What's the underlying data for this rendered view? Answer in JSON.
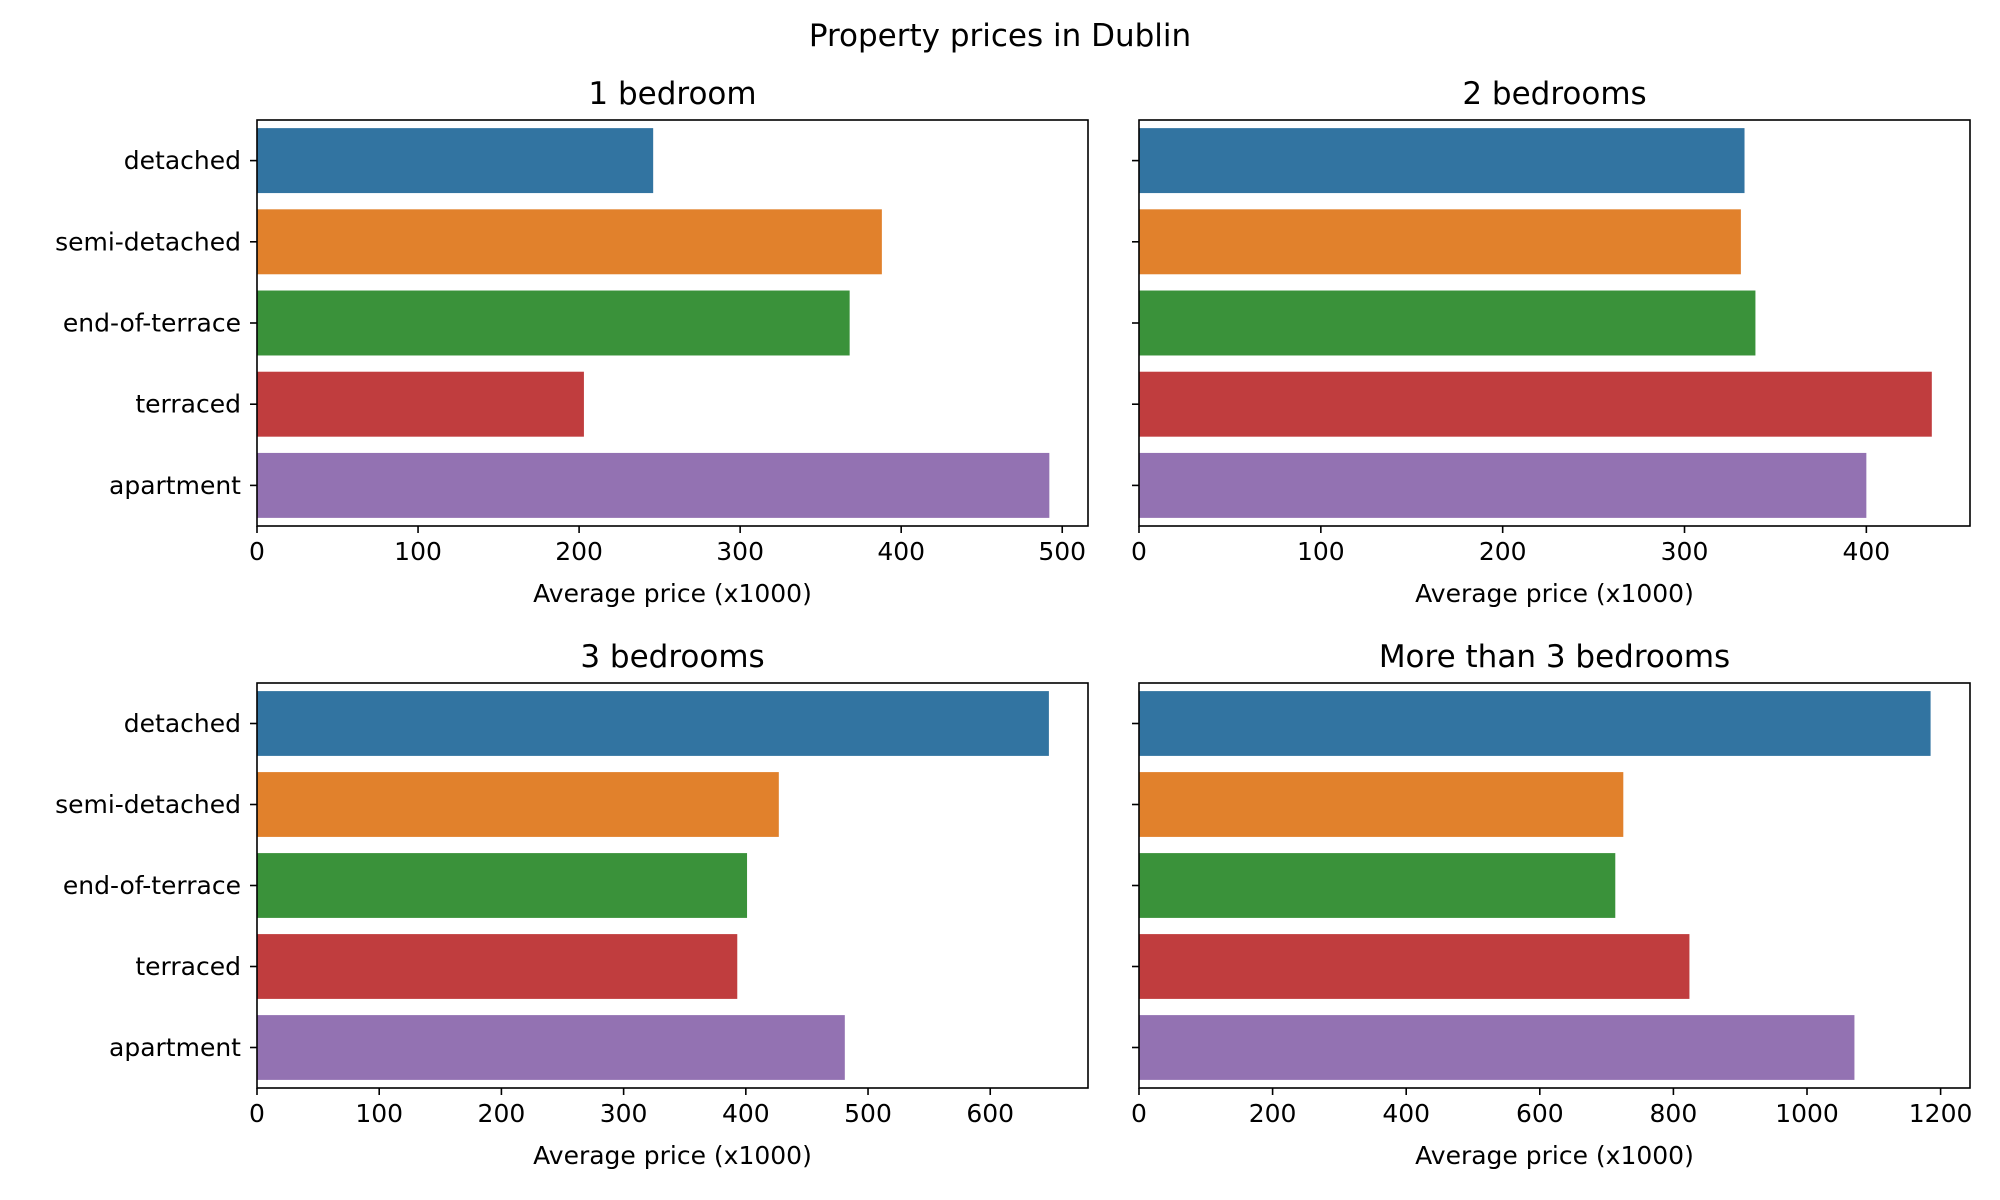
{
  "figure": {
    "title": "Property prices in Dublin"
  },
  "category_axis": [
    "detached",
    "semi-detached",
    "end-of-terrace",
    "terraced",
    "apartment"
  ],
  "colors": [
    "#3274a1",
    "#e1812c",
    "#3a923a",
    "#c03d3e",
    "#9372b2"
  ],
  "chart_data": [
    {
      "type": "bar",
      "orientation": "horizontal",
      "title": "1 bedroom",
      "categories": [
        "detached",
        "semi-detached",
        "end-of-terrace",
        "terraced",
        "apartment"
      ],
      "values": [
        246,
        388,
        368,
        203,
        492
      ],
      "xlabel": "Average price (x1000)",
      "ylabel": "",
      "xlim": [
        0,
        516
      ],
      "xticks": [
        0,
        100,
        200,
        300,
        400,
        500
      ],
      "grid": false,
      "legend": "none"
    },
    {
      "type": "bar",
      "orientation": "horizontal",
      "title": "2 bedrooms",
      "categories": [
        "detached",
        "semi-detached",
        "end-of-terrace",
        "terraced",
        "apartment"
      ],
      "values": [
        333,
        331,
        339,
        436,
        400
      ],
      "xlabel": "Average price (x1000)",
      "ylabel": "",
      "xlim": [
        0,
        457
      ],
      "xticks": [
        0,
        100,
        200,
        300,
        400
      ],
      "grid": false,
      "legend": "none"
    },
    {
      "type": "bar",
      "orientation": "horizontal",
      "title": "3 bedrooms",
      "categories": [
        "detached",
        "semi-detached",
        "end-of-terrace",
        "terraced",
        "apartment"
      ],
      "values": [
        648,
        427,
        401,
        393,
        481
      ],
      "xlabel": "Average price (x1000)",
      "ylabel": "",
      "xlim": [
        0,
        680
      ],
      "xticks": [
        0,
        100,
        200,
        300,
        400,
        500,
        600
      ],
      "grid": false,
      "legend": "none"
    },
    {
      "type": "bar",
      "orientation": "horizontal",
      "title": "More than 3 bedrooms",
      "categories": [
        "detached",
        "semi-detached",
        "end-of-terrace",
        "terraced",
        "apartment"
      ],
      "values": [
        1185,
        725,
        713,
        824,
        1071
      ],
      "xlabel": "Average price (x1000)",
      "ylabel": "",
      "xlim": [
        0,
        1244
      ],
      "xticks": [
        0,
        200,
        400,
        600,
        800,
        1000,
        1200
      ],
      "grid": false,
      "legend": "none"
    }
  ]
}
